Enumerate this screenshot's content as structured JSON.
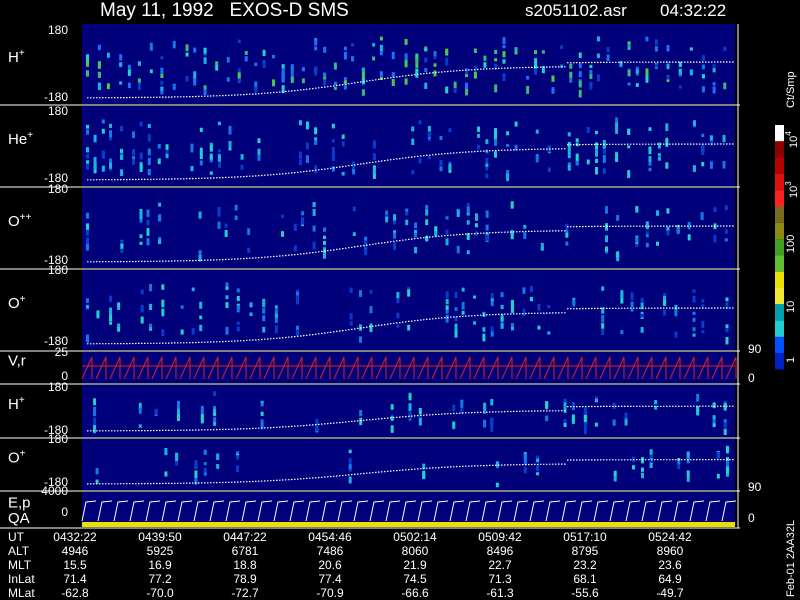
{
  "header": {
    "title": "May 11, 1992   EXOS-D SMS",
    "file": "s2051102.asr",
    "time": "04:32:22"
  },
  "panels": [
    {
      "label": {
        "base": "H",
        "sup": "+"
      },
      "yticks": [
        180,
        -180
      ]
    },
    {
      "label": {
        "base": "He",
        "sup": "+"
      },
      "yticks": [
        180,
        -180
      ]
    },
    {
      "label": {
        "base": "O",
        "sup": "++"
      },
      "yticks": [
        180,
        -180
      ]
    },
    {
      "label": {
        "base": "O",
        "sup": "+"
      },
      "yticks": [
        180,
        -180
      ]
    },
    {
      "label": {
        "base": "V,r"
      },
      "yticks": [
        25,
        0
      ],
      "y2ticks": [
        90,
        0
      ]
    },
    {
      "label": {
        "base": "H",
        "sup": "+"
      },
      "yticks": [
        180,
        -180
      ]
    },
    {
      "label": {
        "base": "O",
        "sup": "+"
      },
      "yticks": [
        180,
        -180
      ]
    },
    {
      "label": {
        "base": "E,p"
      },
      "label2": "QA",
      "yticks": [
        4000,
        0
      ],
      "y2ticks": [
        90,
        0
      ]
    }
  ],
  "colorbar": {
    "title": "Ct/Smp",
    "ticks": [
      {
        "base": "10",
        "sup": "4"
      },
      {
        "base": "10",
        "sup": "3"
      },
      {
        "base": "100"
      },
      {
        "base": "10"
      },
      {
        "base": "1"
      }
    ]
  },
  "table": {
    "rows": [
      {
        "name": "UT",
        "cells": [
          "0432:22",
          "0439:50",
          "0447:22",
          "0454:46",
          "0502:14",
          "0509:42",
          "0517:10",
          "0524:42"
        ]
      },
      {
        "name": "ALT",
        "cells": [
          "4946",
          "5925",
          "6781",
          "7486",
          "8060",
          "8496",
          "8795",
          "8960"
        ]
      },
      {
        "name": "MLT",
        "cells": [
          "15.5",
          "16.9",
          "18.8",
          "20.6",
          "21.9",
          "22.7",
          "23.2",
          "23.6"
        ]
      },
      {
        "name": "InLat",
        "cells": [
          "71.4",
          "77.2",
          "78.9",
          "77.4",
          "74.5",
          "71.3",
          "68.1",
          "64.9"
        ]
      },
      {
        "name": "MLat",
        "cells": [
          "-62.8",
          "-70.0",
          "-72.7",
          "-70.9",
          "-66.6",
          "-61.3",
          "-55.6",
          "-49.7"
        ]
      }
    ]
  },
  "footer": "Feb-01 2AA32L"
}
